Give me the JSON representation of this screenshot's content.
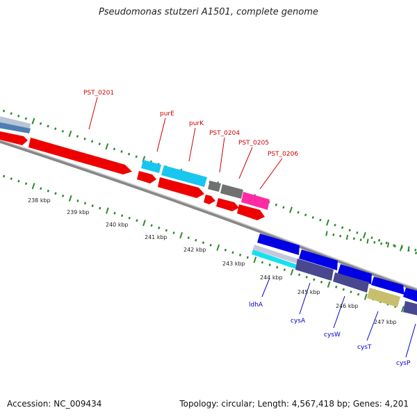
{
  "header": {
    "title": "Pseudomonas stutzeri A1501, complete genome"
  },
  "footer": {
    "accession": "Accession: NC_009434",
    "summary": "Topology: circular; Length: 4,567,418 bp; Genes: 4,201"
  },
  "colors": {
    "forward_cds": "#ff0000",
    "reverse_cds": "#0000ee",
    "gene_label_fwd": "#cc0000",
    "gene_label_rev": "#0000cc",
    "tick": "#2a8a2a",
    "backbone": "#888888"
  },
  "scale_labels": [
    "238 kbp",
    "239 kbp",
    "240 kbp",
    "241 kbp",
    "242 kbp",
    "243 kbp",
    "244 kbp",
    "245 kbp",
    "246 kbp",
    "247 kbp"
  ],
  "gene_labels_top": [
    "PST_0201",
    "purE",
    "purK",
    "PST_0204",
    "PST_0205",
    "PST_0206"
  ],
  "gene_labels_bottom": [
    "ldhA",
    "cysA",
    "cysW",
    "cysT",
    "cysP"
  ]
}
